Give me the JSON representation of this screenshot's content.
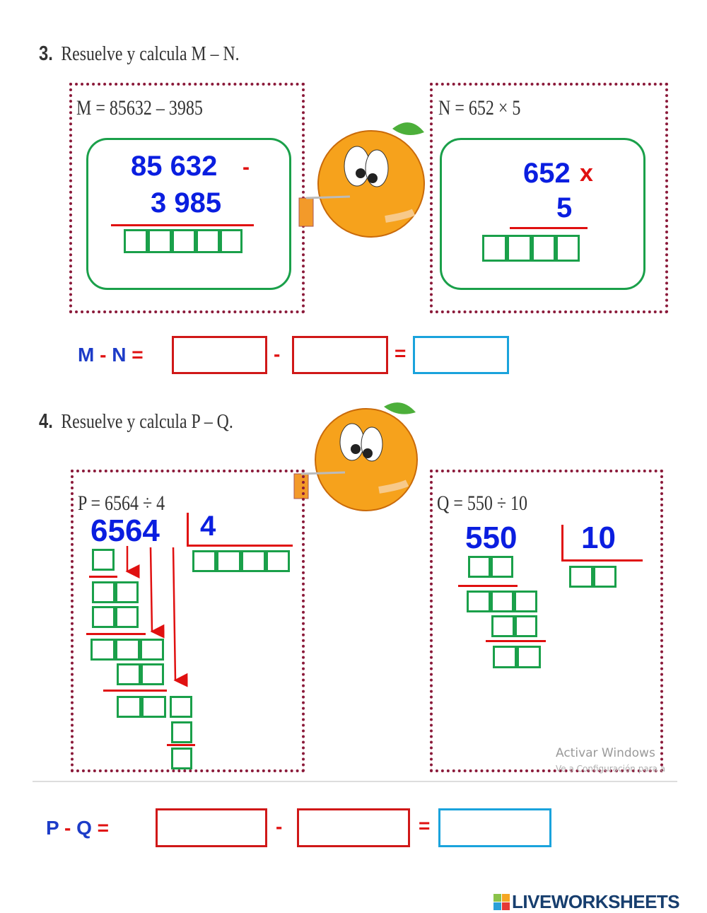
{
  "section3": {
    "number": "3.",
    "title": "Resuelve y calcula M – N.",
    "m_equation": "M = 85632 – 3985",
    "m_top": "85 632",
    "m_op": "-",
    "m_bottom": "3 985",
    "n_equation": "N = 652  × 5",
    "n_top": "652",
    "n_op": "x",
    "n_bottom": "5",
    "answer": {
      "left": "M",
      "minus": "-",
      "right": "N",
      "eq": "=",
      "minus2": "-",
      "eq2": "="
    }
  },
  "section4": {
    "number": "4.",
    "title": "Resuelve y calcula P – Q.",
    "p_equation": "P = 6564  ÷ 4",
    "p_dividend": "6564",
    "p_divisor": "4",
    "q_equation": "Q = 550  ÷ 10",
    "q_dividend": "550",
    "q_divisor": "10",
    "answer": {
      "left": "P",
      "minus": "-",
      "right": "Q",
      "eq": "=",
      "minus2": "-",
      "eq2": "="
    }
  },
  "watermark": {
    "line1": "Activar Windows",
    "line2": "Ve a Configuración para a"
  },
  "brand": {
    "logo_letters": "LIVE",
    "name": "LIVEWORKSHEETS"
  },
  "colors": {
    "blue": "#0a1ee0",
    "red": "#e01010",
    "green": "#1aa04a",
    "dots": "#8b1a3a",
    "answer_blue": "#1aa3dc"
  }
}
